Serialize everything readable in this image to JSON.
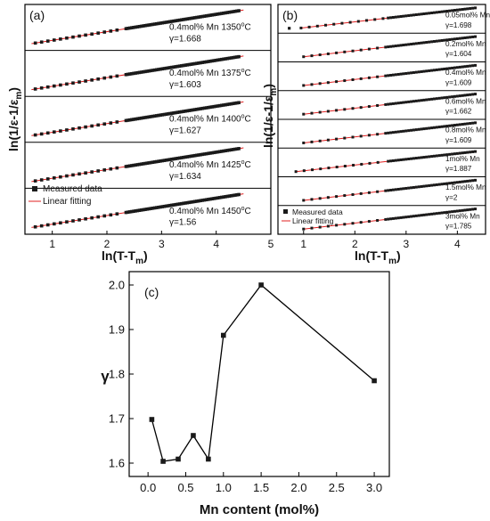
{
  "panel_a": {
    "label": "(a)",
    "xlabel_main": "ln(T-T",
    "xlabel_sub": "m",
    "xlabel_end": ")",
    "ylabel": "ln(1/ε-1/ε",
    "ylabel_sub": "m",
    "ylabel_end": ")",
    "xticks": [
      "1",
      "2",
      "3",
      "4",
      "5"
    ],
    "legend": {
      "measured": "Measured data",
      "fit": "Linear fitting"
    },
    "rows": [
      {
        "comp": "0.4mol% Mn 1350",
        "deg": "o",
        "unit": "C",
        "gamma": "γ=1.668"
      },
      {
        "comp": "0.4mol% Mn 1375",
        "deg": "o",
        "unit": "C",
        "gamma": "γ=1.603"
      },
      {
        "comp": "0.4mol% Mn 1400",
        "deg": "o",
        "unit": "C",
        "gamma": "γ=1.627"
      },
      {
        "comp": "0.4mol% Mn 1425",
        "deg": "o",
        "unit": "C",
        "gamma": "γ=1.634"
      },
      {
        "comp": "0.4mol% Mn 1450",
        "deg": "o",
        "unit": "C",
        "gamma": "γ=1.56"
      }
    ]
  },
  "panel_b": {
    "label": "(b)",
    "xlabel_main": "ln(T-T",
    "xlabel_sub": "m",
    "xlabel_end": ")",
    "ylabel": "ln(1/ε-1/ε",
    "ylabel_sub": "m",
    "ylabel_end": ")",
    "xticks": [
      "1",
      "2",
      "3",
      "4"
    ],
    "legend": {
      "measured": "Measured data",
      "fit": "Linear fitting"
    },
    "rows": [
      {
        "comp": "0.05mol% Mn",
        "gamma": "γ=1.698"
      },
      {
        "comp": "0.2mol% Mn",
        "gamma": "γ=1.604"
      },
      {
        "comp": "0.4mol% Mn",
        "gamma": "γ=1.609"
      },
      {
        "comp": "0.6mol% Mn",
        "gamma": "γ=1.662"
      },
      {
        "comp": "0.8mol% Mn",
        "gamma": "γ=1.609"
      },
      {
        "comp": "1mol% Mn",
        "gamma": "γ=1.887"
      },
      {
        "comp": "1.5mol% Mn",
        "gamma": "γ=2"
      },
      {
        "comp": "3mol% Mn",
        "gamma": "γ=1.785"
      }
    ]
  },
  "panel_c": {
    "label": "(c)",
    "xlabel": "Mn content (mol%)",
    "ylabel": "γ",
    "xticks": [
      "0.0",
      "0.5",
      "1.0",
      "1.5",
      "2.0",
      "2.5",
      "3.0"
    ],
    "yticks": [
      "1.6",
      "1.7",
      "1.8",
      "1.9",
      "2.0"
    ]
  },
  "chart_data": [
    {
      "type": "scatter",
      "panel": "(a)",
      "xlim": [
        0.5,
        5
      ],
      "xlabel": "ln(T-Tm)",
      "ylabel": "ln(1/ε-1/εm)",
      "series": [
        {
          "name": "0.4mol% Mn 1350oC",
          "gamma": 1.668
        },
        {
          "name": "0.4mol% Mn 1375oC",
          "gamma": 1.603
        },
        {
          "name": "0.4mol% Mn 1400oC",
          "gamma": 1.627
        },
        {
          "name": "0.4mol% Mn 1425oC",
          "gamma": 1.634
        },
        {
          "name": "0.4mol% Mn 1450oC",
          "gamma": 1.56
        }
      ],
      "legend": [
        "Measured data",
        "Linear fitting"
      ]
    },
    {
      "type": "scatter",
      "panel": "(b)",
      "xlim": [
        0.5,
        4.5
      ],
      "xlabel": "ln(T-Tm)",
      "ylabel": "ln(1/ε-1/εm)",
      "series": [
        {
          "name": "0.05mol% Mn",
          "gamma": 1.698
        },
        {
          "name": "0.2mol% Mn",
          "gamma": 1.604
        },
        {
          "name": "0.4mol% Mn",
          "gamma": 1.609
        },
        {
          "name": "0.6mol% Mn",
          "gamma": 1.662
        },
        {
          "name": "0.8mol% Mn",
          "gamma": 1.609
        },
        {
          "name": "1mol% Mn",
          "gamma": 1.887
        },
        {
          "name": "1.5mol% Mn",
          "gamma": 2
        },
        {
          "name": "3mol% Mn",
          "gamma": 1.785
        }
      ],
      "legend": [
        "Measured data",
        "Linear fitting"
      ]
    },
    {
      "type": "line",
      "panel": "(c)",
      "x": [
        0.05,
        0.2,
        0.4,
        0.6,
        0.8,
        1.0,
        1.5,
        3.0
      ],
      "values": [
        1.698,
        1.604,
        1.609,
        1.662,
        1.609,
        1.887,
        2.0,
        1.785
      ],
      "xlabel": "Mn content (mol%)",
      "ylabel": "γ",
      "xlim": [
        -0.25,
        3.2
      ],
      "ylim": [
        1.57,
        2.03
      ]
    }
  ]
}
